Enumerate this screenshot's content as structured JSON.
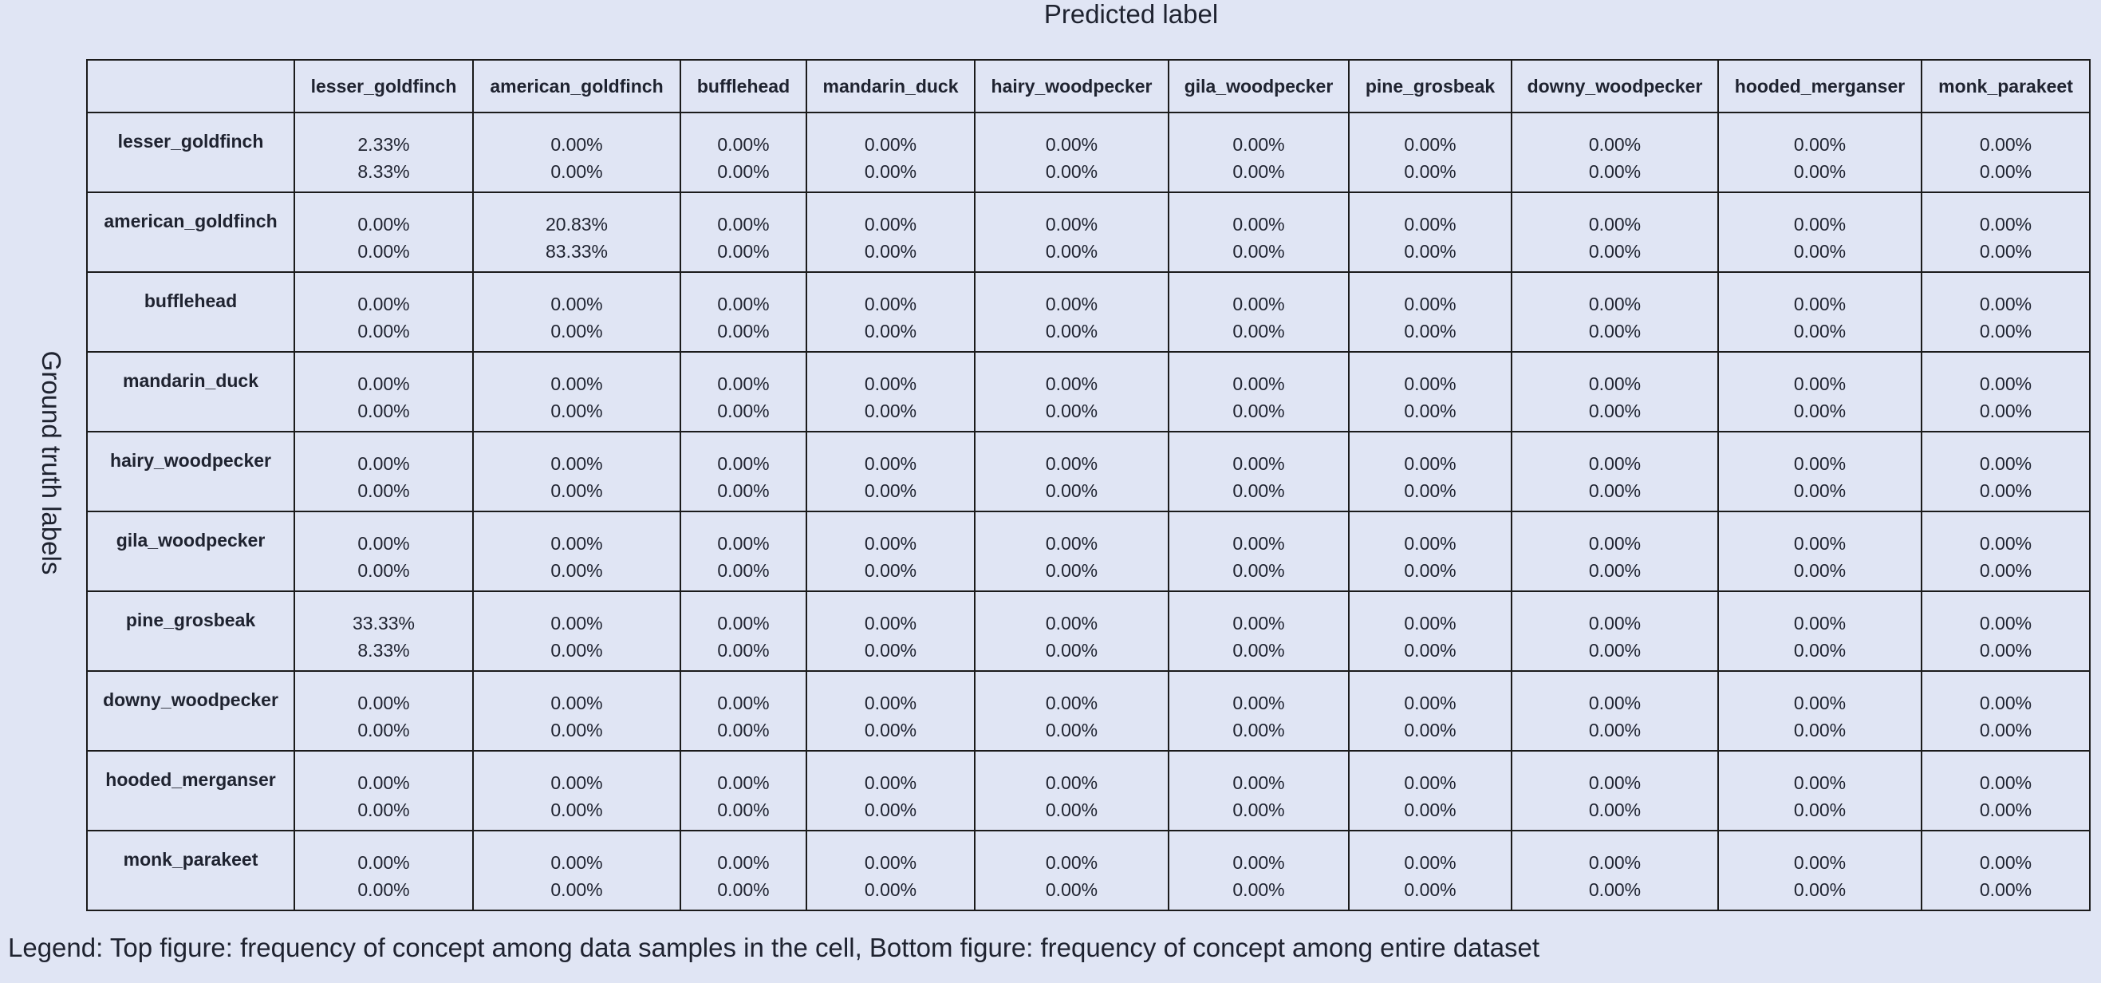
{
  "chart_data": {
    "type": "table",
    "xlabel": "Predicted label",
    "ylabel": "Ground truth labels",
    "categories": [
      "lesser_goldfinch",
      "american_goldfinch",
      "bufflehead",
      "mandarin_duck",
      "hairy_woodpecker",
      "gila_woodpecker",
      "pine_grosbeak",
      "downy_woodpecker",
      "hooded_merganser",
      "monk_parakeet"
    ],
    "rows": [
      {
        "label": "lesser_goldfinch",
        "top": [
          "2.33%",
          "0.00%",
          "0.00%",
          "0.00%",
          "0.00%",
          "0.00%",
          "0.00%",
          "0.00%",
          "0.00%",
          "0.00%"
        ],
        "bottom": [
          "8.33%",
          "0.00%",
          "0.00%",
          "0.00%",
          "0.00%",
          "0.00%",
          "0.00%",
          "0.00%",
          "0.00%",
          "0.00%"
        ]
      },
      {
        "label": "american_goldfinch",
        "top": [
          "0.00%",
          "20.83%",
          "0.00%",
          "0.00%",
          "0.00%",
          "0.00%",
          "0.00%",
          "0.00%",
          "0.00%",
          "0.00%"
        ],
        "bottom": [
          "0.00%",
          "83.33%",
          "0.00%",
          "0.00%",
          "0.00%",
          "0.00%",
          "0.00%",
          "0.00%",
          "0.00%",
          "0.00%"
        ]
      },
      {
        "label": "bufflehead",
        "top": [
          "0.00%",
          "0.00%",
          "0.00%",
          "0.00%",
          "0.00%",
          "0.00%",
          "0.00%",
          "0.00%",
          "0.00%",
          "0.00%"
        ],
        "bottom": [
          "0.00%",
          "0.00%",
          "0.00%",
          "0.00%",
          "0.00%",
          "0.00%",
          "0.00%",
          "0.00%",
          "0.00%",
          "0.00%"
        ]
      },
      {
        "label": "mandarin_duck",
        "top": [
          "0.00%",
          "0.00%",
          "0.00%",
          "0.00%",
          "0.00%",
          "0.00%",
          "0.00%",
          "0.00%",
          "0.00%",
          "0.00%"
        ],
        "bottom": [
          "0.00%",
          "0.00%",
          "0.00%",
          "0.00%",
          "0.00%",
          "0.00%",
          "0.00%",
          "0.00%",
          "0.00%",
          "0.00%"
        ]
      },
      {
        "label": "hairy_woodpecker",
        "top": [
          "0.00%",
          "0.00%",
          "0.00%",
          "0.00%",
          "0.00%",
          "0.00%",
          "0.00%",
          "0.00%",
          "0.00%",
          "0.00%"
        ],
        "bottom": [
          "0.00%",
          "0.00%",
          "0.00%",
          "0.00%",
          "0.00%",
          "0.00%",
          "0.00%",
          "0.00%",
          "0.00%",
          "0.00%"
        ]
      },
      {
        "label": "gila_woodpecker",
        "top": [
          "0.00%",
          "0.00%",
          "0.00%",
          "0.00%",
          "0.00%",
          "0.00%",
          "0.00%",
          "0.00%",
          "0.00%",
          "0.00%"
        ],
        "bottom": [
          "0.00%",
          "0.00%",
          "0.00%",
          "0.00%",
          "0.00%",
          "0.00%",
          "0.00%",
          "0.00%",
          "0.00%",
          "0.00%"
        ]
      },
      {
        "label": "pine_grosbeak",
        "top": [
          "33.33%",
          "0.00%",
          "0.00%",
          "0.00%",
          "0.00%",
          "0.00%",
          "0.00%",
          "0.00%",
          "0.00%",
          "0.00%"
        ],
        "bottom": [
          "8.33%",
          "0.00%",
          "0.00%",
          "0.00%",
          "0.00%",
          "0.00%",
          "0.00%",
          "0.00%",
          "0.00%",
          "0.00%"
        ]
      },
      {
        "label": "downy_woodpecker",
        "top": [
          "0.00%",
          "0.00%",
          "0.00%",
          "0.00%",
          "0.00%",
          "0.00%",
          "0.00%",
          "0.00%",
          "0.00%",
          "0.00%"
        ],
        "bottom": [
          "0.00%",
          "0.00%",
          "0.00%",
          "0.00%",
          "0.00%",
          "0.00%",
          "0.00%",
          "0.00%",
          "0.00%",
          "0.00%"
        ]
      },
      {
        "label": "hooded_merganser",
        "top": [
          "0.00%",
          "0.00%",
          "0.00%",
          "0.00%",
          "0.00%",
          "0.00%",
          "0.00%",
          "0.00%",
          "0.00%",
          "0.00%"
        ],
        "bottom": [
          "0.00%",
          "0.00%",
          "0.00%",
          "0.00%",
          "0.00%",
          "0.00%",
          "0.00%",
          "0.00%",
          "0.00%",
          "0.00%"
        ]
      },
      {
        "label": "monk_parakeet",
        "top": [
          "0.00%",
          "0.00%",
          "0.00%",
          "0.00%",
          "0.00%",
          "0.00%",
          "0.00%",
          "0.00%",
          "0.00%",
          "0.00%"
        ],
        "bottom": [
          "0.00%",
          "0.00%",
          "0.00%",
          "0.00%",
          "0.00%",
          "0.00%",
          "0.00%",
          "0.00%",
          "0.00%",
          "0.00%"
        ]
      }
    ],
    "legend_text": "Legend: Top figure: frequency of concept among data samples in the cell, Bottom figure: frequency of concept among entire dataset",
    "colors": {
      "background": "#e0e5f4",
      "grid": "#1b1b1b",
      "text": "#1f2330"
    }
  }
}
